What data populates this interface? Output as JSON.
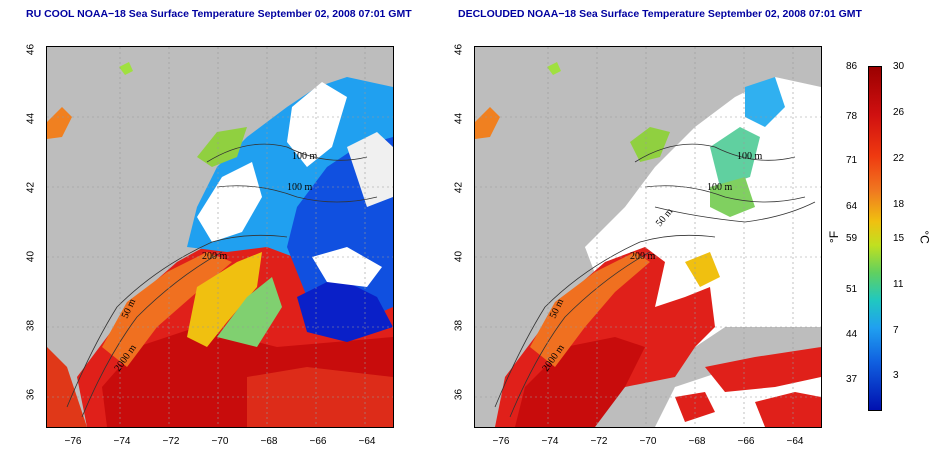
{
  "left_panel": {
    "title": "RU COOL NOAA−18 Sea Surface Temperature September 02, 2008 07:01 GMT",
    "contour_labels": [
      "100 m",
      "100 m",
      "200 m",
      "50 m",
      "2000 m"
    ]
  },
  "right_panel": {
    "title": "DECLOUDED NOAA−18 Sea Surface Temperature September 02, 2008 07:01 GMT",
    "contour_labels": [
      "100 m",
      "100 m",
      "50 m",
      "200 m",
      "50 m",
      "2000 m"
    ]
  },
  "axes": {
    "y_ticks": [
      "46",
      "44",
      "42",
      "40",
      "38",
      "36"
    ],
    "x_ticks": [
      "−76",
      "−74",
      "−72",
      "−70",
      "−68",
      "−66",
      "−64"
    ],
    "ylim": [
      35,
      46
    ],
    "xlim": [
      -77,
      -63
    ]
  },
  "colorbar": {
    "fahrenheit_unit": "°F",
    "celsius_unit": "°C",
    "fahrenheit_ticks": [
      "86",
      "78",
      "71",
      "64",
      "59",
      "51",
      "44",
      "37"
    ],
    "celsius_ticks": [
      "30",
      "26",
      "22",
      "18",
      "15",
      "11",
      "7",
      "3"
    ]
  },
  "colors": {
    "land": "#bdbdbd",
    "cloud": "#ffffff",
    "title": "#0000a0",
    "warm": "#e0201a",
    "hot": "#c80c0c",
    "cool": "#1e78e6",
    "cold": "#0a20c8"
  }
}
